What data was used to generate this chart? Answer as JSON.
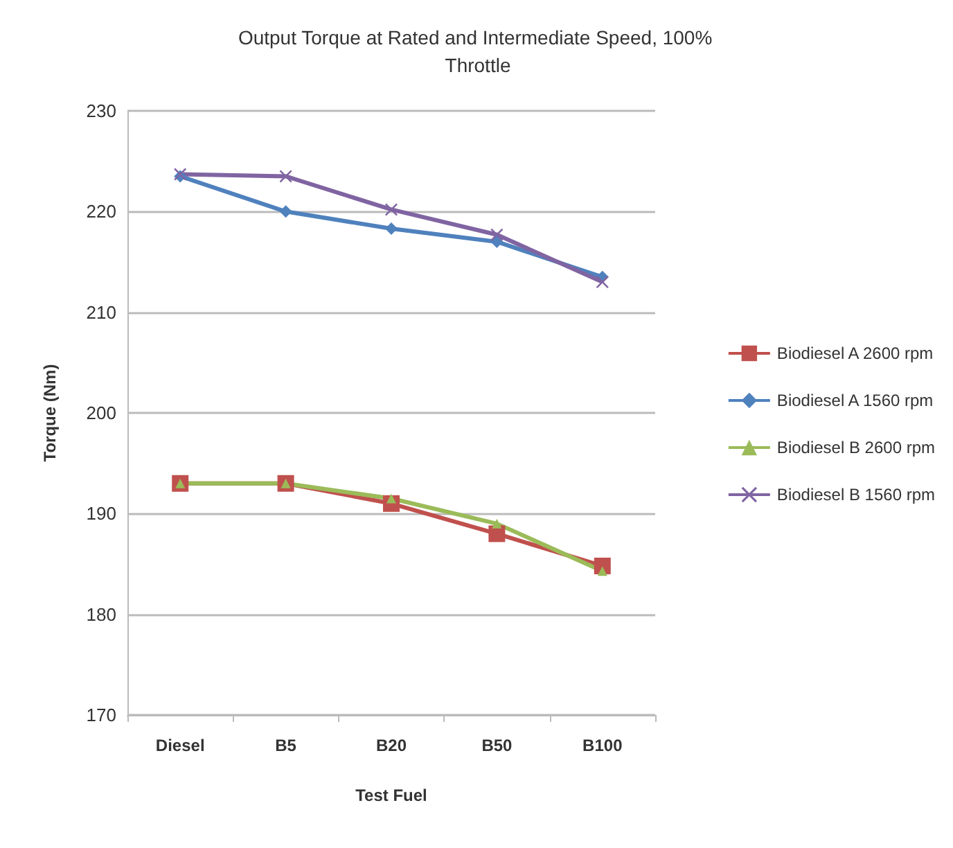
{
  "chart_data": {
    "type": "line",
    "title": "Output Torque at Rated and Intermediate Speed, 100% Throttle",
    "xlabel": "Test Fuel",
    "ylabel": "Torque (Nm)",
    "categories": [
      "Diesel",
      "B5",
      "B20",
      "B50",
      "B100"
    ],
    "series": [
      {
        "name": "Biodiesel A 2600 rpm",
        "color": "#c0504d",
        "marker": "square",
        "values": [
          193,
          193,
          191,
          188,
          184.8
        ]
      },
      {
        "name": "Biodiesel A 1560 rpm",
        "color": "#4f81bd",
        "marker": "diamond",
        "values": [
          223.5,
          220,
          218.3,
          217,
          213.5
        ]
      },
      {
        "name": "Biodiesel B 2600 rpm",
        "color": "#9bbb59",
        "marker": "triangle",
        "values": [
          193,
          193,
          191.5,
          189,
          184.3
        ]
      },
      {
        "name": "Biodiesel B 1560 rpm",
        "color": "#8064a2",
        "marker": "cross",
        "values": [
          223.7,
          223.5,
          220.2,
          217.7,
          213
        ]
      }
    ],
    "ylim": [
      170,
      230
    ],
    "yticks": [
      170,
      180,
      190,
      200,
      210,
      220,
      230
    ],
    "grid": "y",
    "legend": "right"
  }
}
